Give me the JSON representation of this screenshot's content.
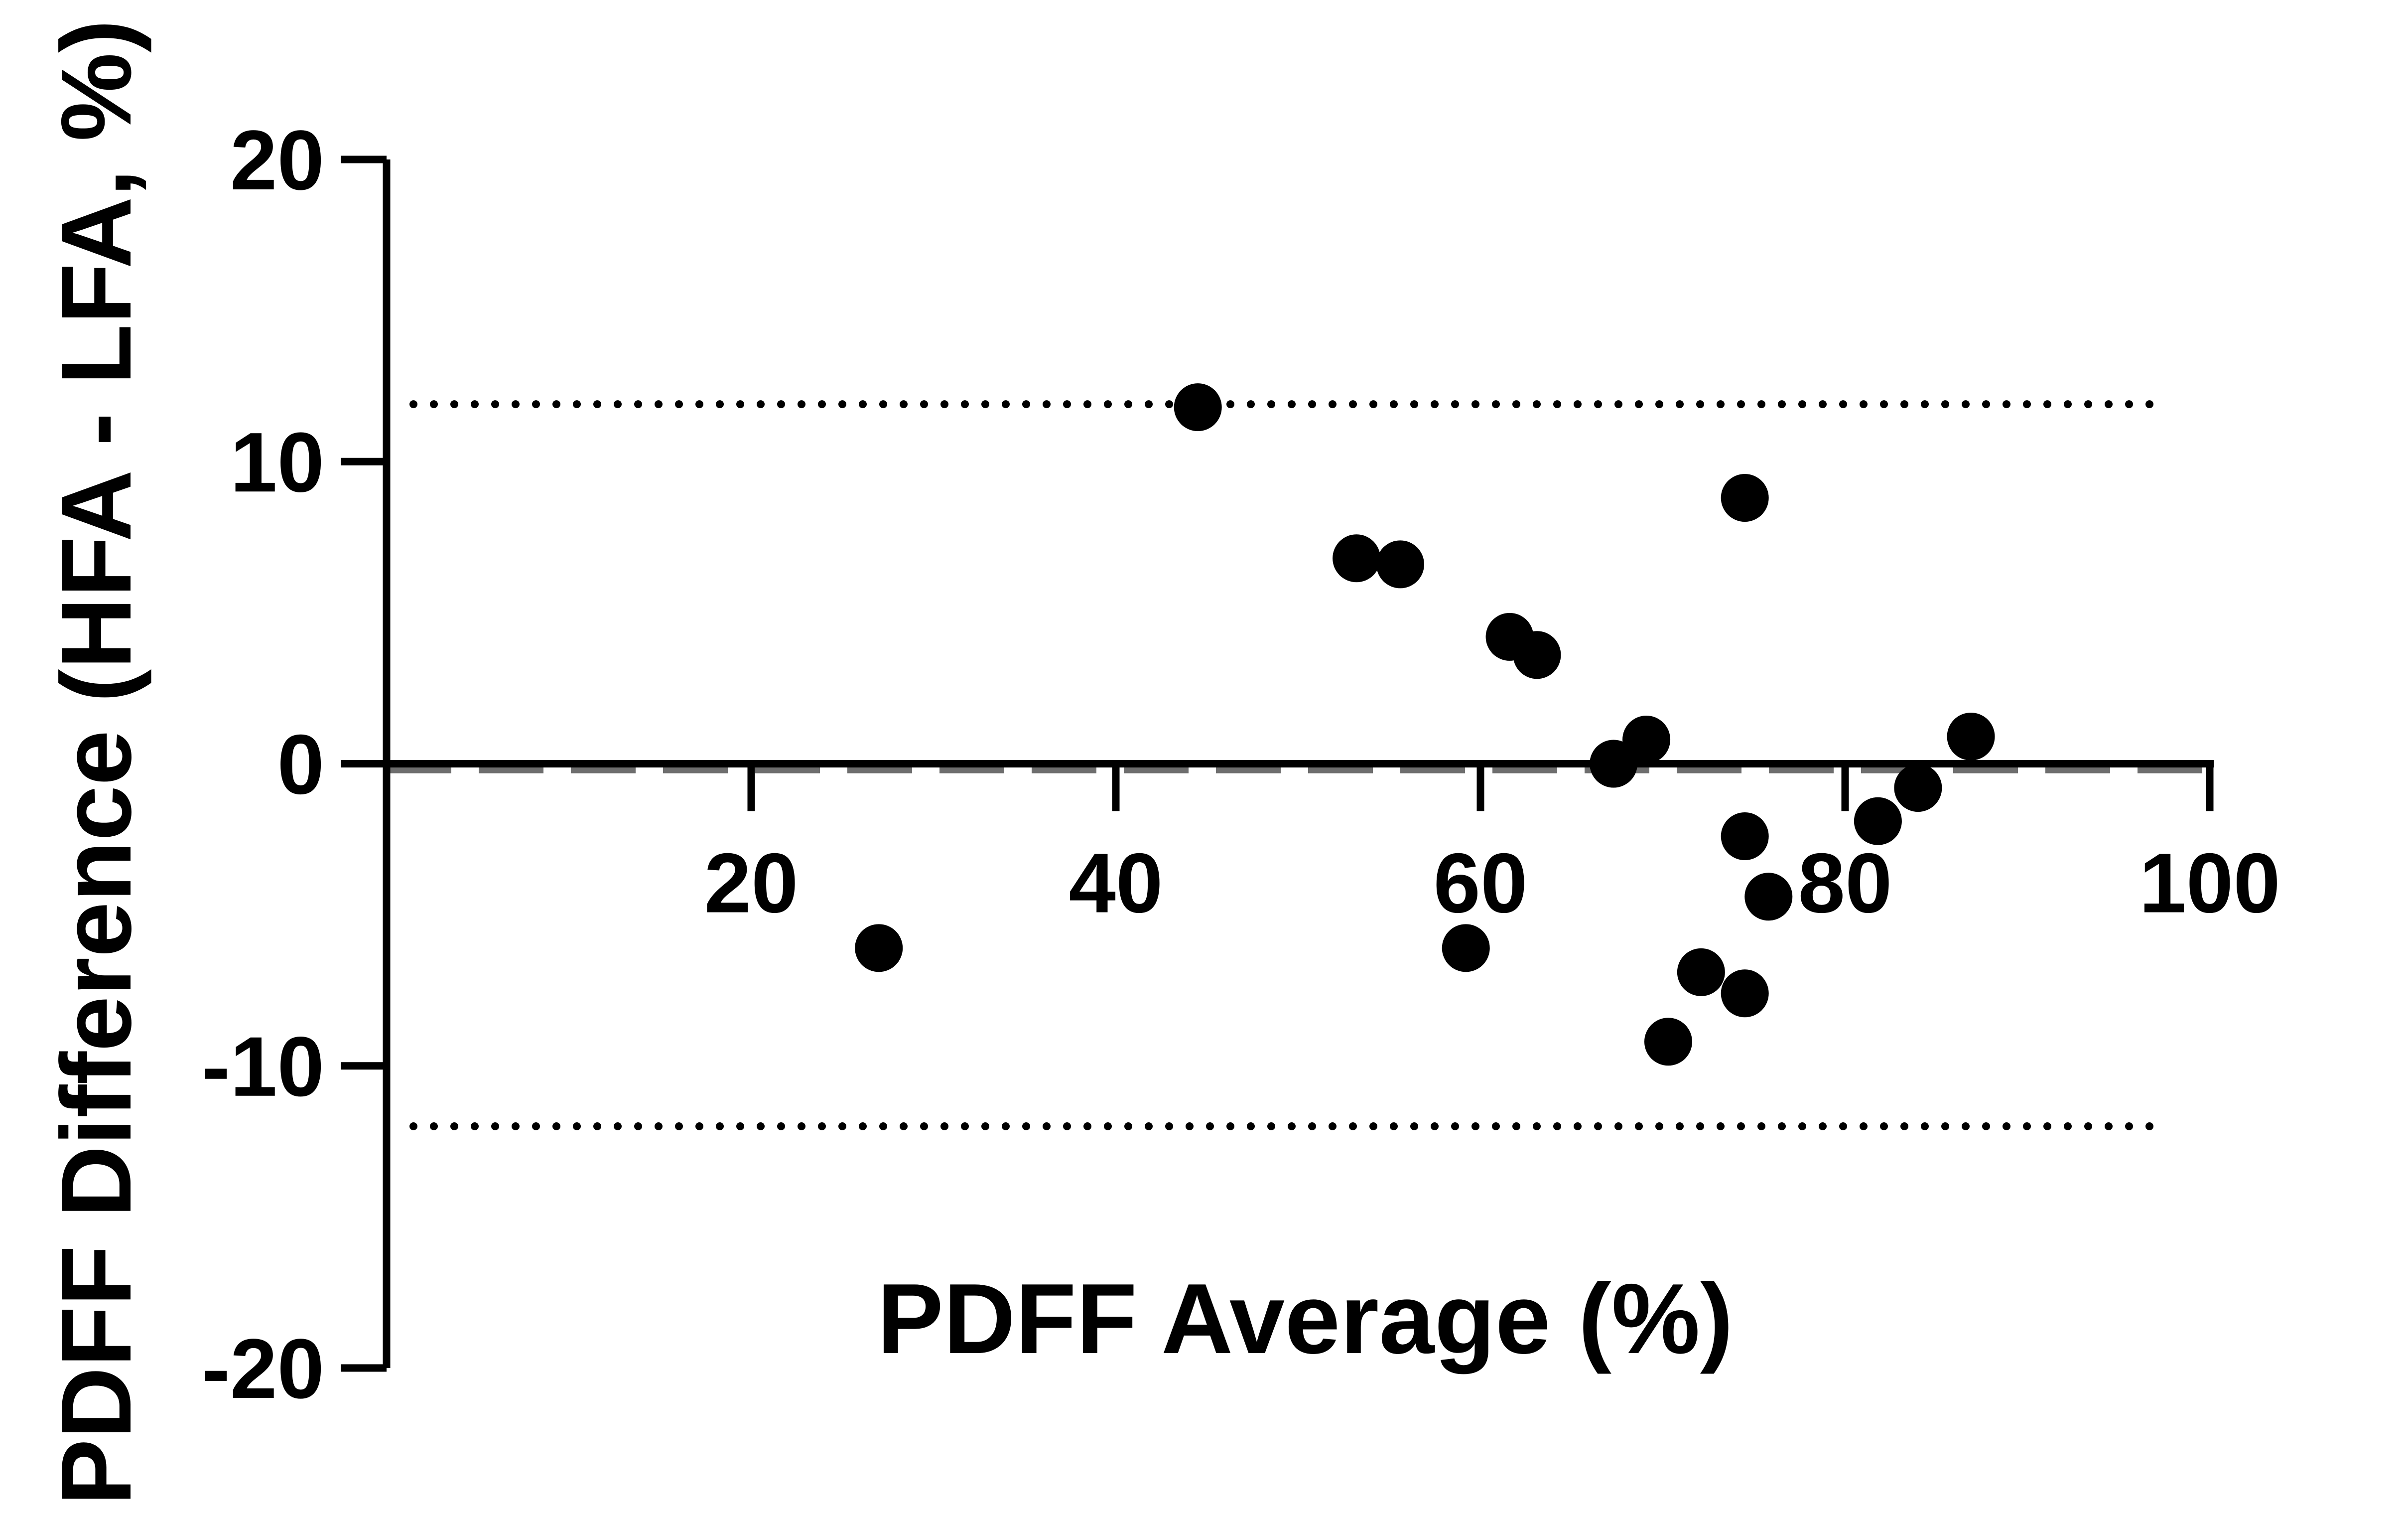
{
  "chart_data": {
    "type": "scatter",
    "title": "",
    "xlabel": "PDFF Average (%)",
    "ylabel": "PDFF Difference (HFA - LFA, %)",
    "xlim": [
      0,
      100
    ],
    "ylim": [
      -20,
      20
    ],
    "x_ticks": [
      20,
      40,
      60,
      80,
      100
    ],
    "y_ticks": [
      -20,
      -10,
      0,
      10,
      20
    ],
    "x_axis_position": "crosses y = 0",
    "grid": false,
    "legend": "none",
    "colors": {
      "points": "#000000",
      "axes": "#000000",
      "mean_line": "#6e6e6e",
      "limit_lines": "#000000"
    },
    "reference_lines": {
      "mean_bias": {
        "y": -0.1,
        "style": "dashed"
      },
      "upper_limit": {
        "y": 11.9,
        "style": "dotted"
      },
      "lower_limit": {
        "y": -12.0,
        "style": "dotted"
      }
    },
    "series": [
      {
        "points": [
          {
            "x": 27.0,
            "y": -6.1
          },
          {
            "x": 44.5,
            "y": 11.8
          },
          {
            "x": 53.2,
            "y": 6.8
          },
          {
            "x": 55.6,
            "y": 6.6
          },
          {
            "x": 59.2,
            "y": -6.1
          },
          {
            "x": 61.6,
            "y": 4.2
          },
          {
            "x": 63.1,
            "y": 3.6
          },
          {
            "x": 67.3,
            "y": 0.0
          },
          {
            "x": 69.1,
            "y": 0.8
          },
          {
            "x": 70.3,
            "y": -9.2
          },
          {
            "x": 72.1,
            "y": -6.9
          },
          {
            "x": 74.5,
            "y": 8.8
          },
          {
            "x": 74.5,
            "y": -2.4
          },
          {
            "x": 74.5,
            "y": -7.6
          },
          {
            "x": 75.8,
            "y": -4.4
          },
          {
            "x": 81.8,
            "y": -1.9
          },
          {
            "x": 84.0,
            "y": -0.8
          },
          {
            "x": 86.9,
            "y": 0.9
          }
        ]
      }
    ]
  }
}
